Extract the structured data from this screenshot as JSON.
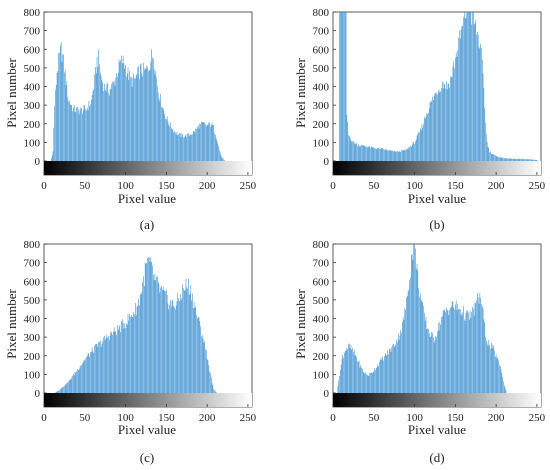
{
  "bar_color": "#3a8fd0",
  "chart_data": [
    {
      "type": "bar",
      "panel_label": "(a)",
      "xlabel": "Pixel value",
      "ylabel": "Pixel number",
      "xlim": [
        0,
        255
      ],
      "ylim": [
        0,
        800
      ],
      "xticks": [
        0,
        50,
        100,
        150,
        200,
        250
      ],
      "yticks": [
        0,
        100,
        200,
        300,
        400,
        500,
        600,
        700,
        800
      ],
      "grayscale_bar": true,
      "profile": [
        [
          8,
          0
        ],
        [
          11,
          50
        ],
        [
          13,
          300
        ],
        [
          16,
          480
        ],
        [
          19,
          560
        ],
        [
          21,
          600
        ],
        [
          23,
          560
        ],
        [
          26,
          470
        ],
        [
          30,
          330
        ],
        [
          36,
          280
        ],
        [
          44,
          270
        ],
        [
          52,
          280
        ],
        [
          58,
          320
        ],
        [
          62,
          430
        ],
        [
          65,
          540
        ],
        [
          67,
          550
        ],
        [
          70,
          450
        ],
        [
          74,
          400
        ],
        [
          80,
          380
        ],
        [
          86,
          420
        ],
        [
          90,
          480
        ],
        [
          93,
          520
        ],
        [
          96,
          540
        ],
        [
          99,
          520
        ],
        [
          103,
          470
        ],
        [
          107,
          430
        ],
        [
          112,
          440
        ],
        [
          118,
          490
        ],
        [
          124,
          480
        ],
        [
          128,
          500
        ],
        [
          132,
          560
        ],
        [
          134,
          570
        ],
        [
          137,
          480
        ],
        [
          140,
          380
        ],
        [
          145,
          300
        ],
        [
          150,
          230
        ],
        [
          155,
          190
        ],
        [
          160,
          160
        ],
        [
          166,
          140
        ],
        [
          172,
          135
        ],
        [
          178,
          140
        ],
        [
          185,
          160
        ],
        [
          190,
          190
        ],
        [
          195,
          200
        ],
        [
          200,
          190
        ],
        [
          205,
          200
        ],
        [
          208,
          180
        ],
        [
          212,
          120
        ],
        [
          215,
          60
        ],
        [
          218,
          20
        ],
        [
          222,
          0
        ],
        [
          225,
          0
        ]
      ]
    },
    {
      "type": "bar",
      "panel_label": "(b)",
      "xlabel": "Pixel value",
      "ylabel": "Pixel number",
      "xlim": [
        0,
        255
      ],
      "ylim": [
        0,
        800
      ],
      "xticks": [
        0,
        50,
        100,
        150,
        200,
        250
      ],
      "yticks": [
        0,
        100,
        200,
        300,
        400,
        500,
        600,
        700,
        800
      ],
      "grayscale_bar": true,
      "profile": [
        [
          7,
          0
        ],
        [
          8,
          800
        ],
        [
          16,
          800
        ],
        [
          17,
          250
        ],
        [
          19,
          140
        ],
        [
          25,
          100
        ],
        [
          32,
          85
        ],
        [
          40,
          80
        ],
        [
          50,
          70
        ],
        [
          60,
          65
        ],
        [
          70,
          55
        ],
        [
          80,
          50
        ],
        [
          90,
          60
        ],
        [
          100,
          100
        ],
        [
          108,
          170
        ],
        [
          115,
          260
        ],
        [
          122,
          330
        ],
        [
          128,
          380
        ],
        [
          133,
          410
        ],
        [
          137,
          420
        ],
        [
          140,
          400
        ],
        [
          145,
          450
        ],
        [
          150,
          550
        ],
        [
          155,
          650
        ],
        [
          159,
          720
        ],
        [
          162,
          790
        ],
        [
          165,
          810
        ],
        [
          168,
          800
        ],
        [
          172,
          760
        ],
        [
          176,
          700
        ],
        [
          179,
          650
        ],
        [
          182,
          560
        ],
        [
          185,
          400
        ],
        [
          187,
          200
        ],
        [
          189,
          100
        ],
        [
          192,
          50
        ],
        [
          200,
          25
        ],
        [
          210,
          15
        ],
        [
          220,
          12
        ],
        [
          235,
          10
        ],
        [
          245,
          8
        ],
        [
          250,
          5
        ],
        [
          252,
          0
        ]
      ]
    },
    {
      "type": "bar",
      "panel_label": "(c)",
      "xlabel": "Pixel value",
      "ylabel": "Pixel number",
      "xlim": [
        0,
        255
      ],
      "ylim": [
        0,
        800
      ],
      "xticks": [
        0,
        50,
        100,
        150,
        200,
        250
      ],
      "yticks": [
        0,
        100,
        200,
        300,
        400,
        500,
        600,
        700,
        800
      ],
      "grayscale_bar": true,
      "profile": [
        [
          13,
          0
        ],
        [
          20,
          20
        ],
        [
          30,
          60
        ],
        [
          40,
          120
        ],
        [
          50,
          180
        ],
        [
          60,
          230
        ],
        [
          70,
          270
        ],
        [
          80,
          310
        ],
        [
          90,
          340
        ],
        [
          100,
          380
        ],
        [
          108,
          420
        ],
        [
          115,
          470
        ],
        [
          120,
          560
        ],
        [
          124,
          650
        ],
        [
          127,
          700
        ],
        [
          130,
          690
        ],
        [
          135,
          620
        ],
        [
          140,
          570
        ],
        [
          145,
          540
        ],
        [
          150,
          510
        ],
        [
          155,
          480
        ],
        [
          160,
          470
        ],
        [
          165,
          500
        ],
        [
          170,
          550
        ],
        [
          175,
          580
        ],
        [
          178,
          570
        ],
        [
          181,
          540
        ],
        [
          185,
          460
        ],
        [
          190,
          380
        ],
        [
          195,
          300
        ],
        [
          200,
          200
        ],
        [
          204,
          100
        ],
        [
          208,
          20
        ],
        [
          212,
          0
        ]
      ]
    },
    {
      "type": "bar",
      "panel_label": "(d)",
      "xlabel": "Pixel value",
      "ylabel": "Pixel number",
      "xlim": [
        0,
        255
      ],
      "ylim": [
        0,
        800
      ],
      "xticks": [
        0,
        50,
        100,
        150,
        200,
        250
      ],
      "yticks": [
        0,
        100,
        200,
        300,
        400,
        500,
        600,
        700,
        800
      ],
      "grayscale_bar": true,
      "profile": [
        [
          5,
          0
        ],
        [
          8,
          100
        ],
        [
          12,
          200
        ],
        [
          16,
          240
        ],
        [
          20,
          250
        ],
        [
          24,
          230
        ],
        [
          28,
          200
        ],
        [
          33,
          150
        ],
        [
          38,
          110
        ],
        [
          43,
          95
        ],
        [
          48,
          110
        ],
        [
          53,
          140
        ],
        [
          58,
          170
        ],
        [
          64,
          200
        ],
        [
          70,
          230
        ],
        [
          75,
          260
        ],
        [
          80,
          300
        ],
        [
          85,
          360
        ],
        [
          90,
          480
        ],
        [
          94,
          640
        ],
        [
          97,
          750
        ],
        [
          99,
          790
        ],
        [
          101,
          760
        ],
        [
          104,
          620
        ],
        [
          108,
          500
        ],
        [
          112,
          410
        ],
        [
          116,
          350
        ],
        [
          120,
          310
        ],
        [
          124,
          290
        ],
        [
          128,
          340
        ],
        [
          133,
          400
        ],
        [
          138,
          440
        ],
        [
          143,
          460
        ],
        [
          148,
          470
        ],
        [
          152,
          460
        ],
        [
          156,
          450
        ],
        [
          160,
          430
        ],
        [
          165,
          410
        ],
        [
          170,
          420
        ],
        [
          174,
          460
        ],
        [
          178,
          510
        ],
        [
          181,
          520
        ],
        [
          184,
          420
        ],
        [
          188,
          290
        ],
        [
          192,
          260
        ],
        [
          196,
          240
        ],
        [
          200,
          200
        ],
        [
          205,
          150
        ],
        [
          209,
          60
        ],
        [
          213,
          0
        ]
      ]
    }
  ]
}
